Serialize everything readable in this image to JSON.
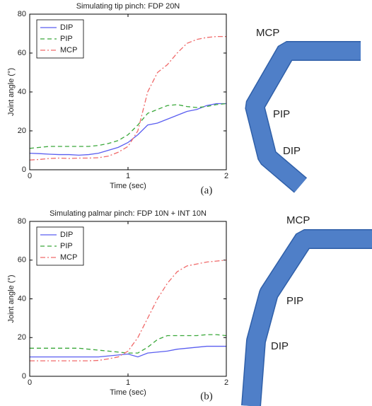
{
  "chart_data": [
    {
      "type": "line",
      "title": "Simulating tip pinch: FDP 20N",
      "x_label": "Time (sec)",
      "y_label": "Joint angle (°)",
      "x": [
        0,
        0.1,
        0.2,
        0.3,
        0.4,
        0.5,
        0.6,
        0.7,
        0.8,
        0.9,
        1,
        1.1,
        1.2,
        1.3,
        1.4,
        1.5,
        1.6,
        1.7,
        1.8,
        1.9,
        2
      ],
      "series": [
        {
          "name": "DIP",
          "color": "#5a5ef0",
          "dash": "solid",
          "values": [
            8.5,
            8.3,
            8,
            7.8,
            7.8,
            7.5,
            7.8,
            8.5,
            10,
            11.5,
            14,
            18,
            23,
            24,
            26,
            28,
            30,
            31,
            33,
            34,
            34
          ]
        },
        {
          "name": "PIP",
          "color": "#3aa83a",
          "dash": "dashed",
          "values": [
            11,
            11.5,
            12,
            12,
            12,
            12,
            12,
            12.5,
            13.5,
            15,
            18,
            23,
            29,
            31,
            33,
            33.5,
            32.5,
            32,
            32.5,
            33.5,
            34
          ]
        },
        {
          "name": "MCP",
          "color": "#f06a6a",
          "dash": "dashdot",
          "values": [
            5,
            5.3,
            5.8,
            6,
            5.8,
            6,
            6,
            6.2,
            7,
            9,
            12,
            20,
            40,
            50,
            54,
            60,
            65,
            67,
            68,
            68.5,
            68.5
          ]
        }
      ],
      "xlim": [
        0,
        2
      ],
      "ylim": [
        0,
        80
      ],
      "xticks": [
        0,
        1,
        2
      ],
      "yticks": [
        0,
        20,
        40,
        60,
        80
      ],
      "legend": "upper left"
    },
    {
      "type": "line",
      "title": "Simulating palmar pinch: FDP 10N + INT 10N",
      "x_label": "Time (sec)",
      "y_label": "Joint angle (°)",
      "x": [
        0,
        0.1,
        0.2,
        0.3,
        0.4,
        0.5,
        0.6,
        0.7,
        0.8,
        0.9,
        1,
        1.1,
        1.2,
        1.3,
        1.4,
        1.5,
        1.6,
        1.7,
        1.8,
        1.9,
        2
      ],
      "series": [
        {
          "name": "DIP",
          "color": "#5a5ef0",
          "dash": "solid",
          "values": [
            10,
            10,
            10,
            10,
            10,
            10,
            10,
            10,
            10.5,
            11,
            11.5,
            10,
            12,
            12.5,
            13,
            14,
            14.5,
            15,
            15.5,
            15.5,
            15.5
          ]
        },
        {
          "name": "PIP",
          "color": "#3aa83a",
          "dash": "dashed",
          "values": [
            14.5,
            14.5,
            14.5,
            14.5,
            14.5,
            14.5,
            14,
            13.5,
            13,
            12.5,
            12,
            12,
            15,
            19,
            21,
            21,
            21,
            21,
            21.5,
            21.5,
            21
          ]
        },
        {
          "name": "MCP",
          "color": "#f06a6a",
          "dash": "dashdot",
          "values": [
            8,
            8,
            8,
            8,
            8,
            8,
            8,
            8.2,
            9,
            10,
            13,
            20,
            30,
            40,
            48,
            54,
            57,
            58,
            59,
            59.5,
            60
          ]
        }
      ],
      "xlim": [
        0,
        2
      ],
      "ylim": [
        0,
        80
      ],
      "xticks": [
        0,
        1,
        2
      ],
      "yticks": [
        0,
        20,
        40,
        60,
        80
      ],
      "legend": "upper left"
    }
  ],
  "panels": [
    {
      "caption": "(a)",
      "joints": [
        "MCP",
        "PIP",
        "DIP"
      ]
    },
    {
      "caption": "(b)",
      "joints": [
        "MCP",
        "PIP",
        "DIP"
      ]
    }
  ]
}
